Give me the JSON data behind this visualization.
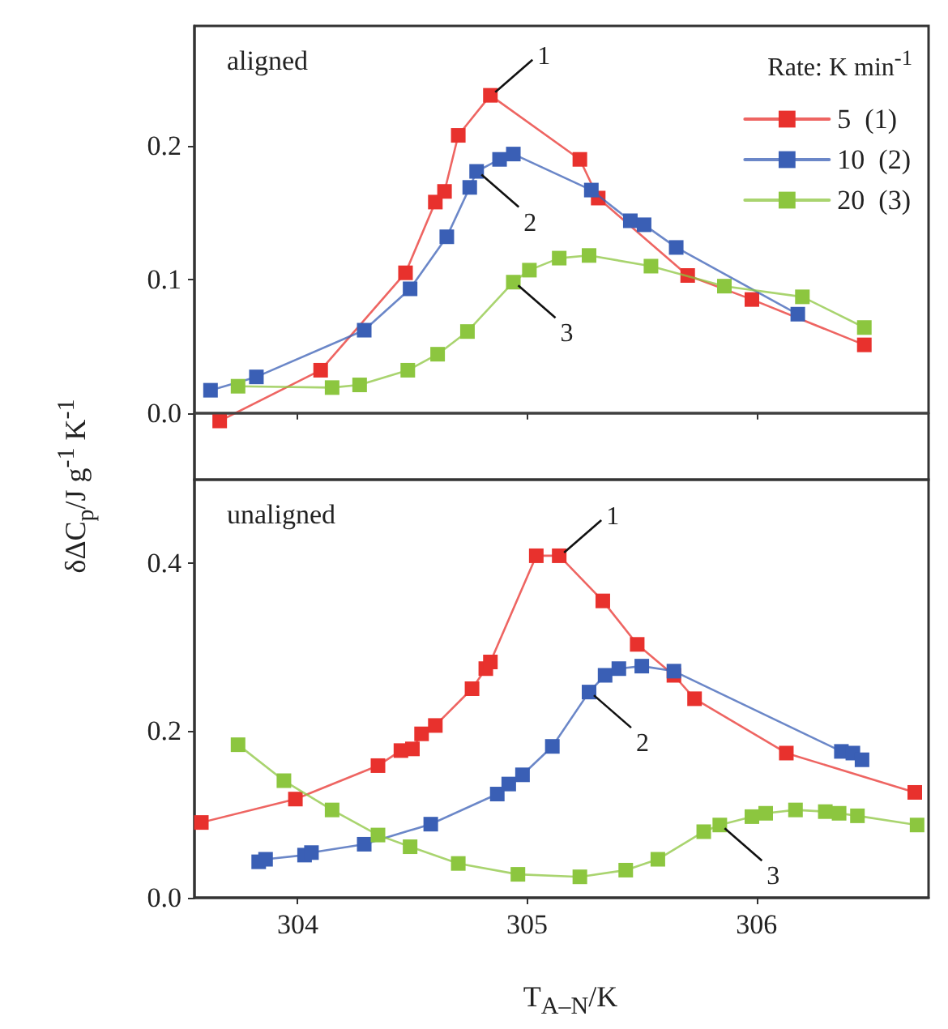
{
  "chart_data": [
    {
      "type": "line",
      "title": "aligned",
      "ylabel": "δΔC$_{p}$/J g$^{-1}$ K$^{-1}$",
      "legend_title": "Rate: K min$^{-1}$",
      "legend": "top right",
      "marker": "square",
      "line_style": "solid",
      "grid": false,
      "tick_labels": "y",
      "xlim": [
        303.55,
        306.75
      ],
      "xticks": [
        {
          "value": 304,
          "label": null
        },
        {
          "value": 305,
          "label": null
        },
        {
          "value": 306,
          "label": null
        }
      ],
      "ylim": [
        -0.05,
        0.29
      ],
      "yticks": [
        {
          "value": 0,
          "label": "0.0"
        },
        {
          "value": 0.1,
          "label": "0.1"
        },
        {
          "value": 0.2,
          "label": "0.2"
        }
      ],
      "ref_lines": [
        {
          "axis": "y",
          "value": 0,
          "color": "#404040"
        }
      ],
      "annotations": [
        {
          "text": "1",
          "x": 304.84,
          "y": 0.238
        },
        {
          "text": "2",
          "x": 304.78,
          "y": 0.181
        },
        {
          "text": "3",
          "x": 304.94,
          "y": 0.098
        }
      ],
      "series": [
        {
          "name": "5  (1)",
          "color": "#e8312d",
          "x": [
            303.66,
            304.1,
            304.47,
            304.6,
            304.64,
            304.7,
            304.84,
            305.23,
            305.31,
            305.7,
            305.98,
            306.47
          ],
          "values": [
            -0.006,
            0.032,
            0.105,
            0.158,
            0.166,
            0.208,
            0.238,
            0.19,
            0.161,
            0.103,
            0.085,
            0.051
          ]
        },
        {
          "name": "10  (2)",
          "color": "#3a5fb5",
          "x": [
            303.62,
            303.82,
            304.29,
            304.49,
            304.65,
            304.75,
            304.78,
            304.88,
            304.94,
            305.28,
            305.45,
            305.51,
            305.65,
            306.18
          ],
          "values": [
            0.017,
            0.027,
            0.062,
            0.093,
            0.132,
            0.169,
            0.181,
            0.19,
            0.194,
            0.167,
            0.144,
            0.141,
            0.124,
            0.074
          ]
        },
        {
          "name": "20  (3)",
          "color": "#8cc63f",
          "x": [
            303.74,
            304.15,
            304.27,
            304.48,
            304.61,
            304.74,
            304.94,
            305.01,
            305.14,
            305.27,
            305.54,
            305.86,
            306.2,
            306.47
          ],
          "values": [
            0.02,
            0.019,
            0.021,
            0.032,
            0.044,
            0.061,
            0.098,
            0.107,
            0.116,
            0.118,
            0.11,
            0.095,
            0.087,
            0.064
          ]
        }
      ]
    },
    {
      "type": "line",
      "title": "unaligned",
      "xlabel": "T$_{A–N}$/K",
      "legend": false,
      "marker": "square",
      "line_style": "solid",
      "grid": false,
      "xlim": [
        303.55,
        306.75
      ],
      "xticks": [
        304,
        305,
        306
      ],
      "ylim": [
        0,
        0.5
      ],
      "yticks": [
        {
          "value": 0,
          "label": "0.0"
        },
        {
          "value": 0.2,
          "label": "0.2"
        },
        {
          "value": 0.4,
          "label": "0.4"
        }
      ],
      "annotations": [
        {
          "text": "1",
          "x": 305.14,
          "y": 0.409
        },
        {
          "text": "2",
          "x": 305.27,
          "y": 0.246
        },
        {
          "text": "3",
          "x": 305.84,
          "y": 0.087
        }
      ],
      "series": [
        {
          "color": "#e8312d",
          "x": [
            303.58,
            303.99,
            304.35,
            304.45,
            304.5,
            304.54,
            304.6,
            304.76,
            304.82,
            304.84,
            305.04,
            305.14,
            305.33,
            305.48,
            305.64,
            305.73,
            306.13,
            306.69
          ],
          "values": [
            0.09,
            0.118,
            0.158,
            0.176,
            0.178,
            0.196,
            0.206,
            0.25,
            0.274,
            0.282,
            0.409,
            0.409,
            0.355,
            0.303,
            0.266,
            0.238,
            0.173,
            0.126
          ]
        },
        {
          "color": "#3a5fb5",
          "x": [
            303.83,
            303.86,
            304.03,
            304.06,
            304.29,
            304.58,
            304.87,
            304.92,
            304.98,
            305.11,
            305.27,
            305.34,
            305.4,
            305.5,
            305.64,
            306.37,
            306.42,
            306.46
          ],
          "values": [
            0.043,
            0.046,
            0.051,
            0.054,
            0.064,
            0.088,
            0.124,
            0.136,
            0.147,
            0.181,
            0.246,
            0.266,
            0.274,
            0.277,
            0.271,
            0.175,
            0.173,
            0.165
          ]
        },
        {
          "color": "#8cc63f",
          "x": [
            303.74,
            303.94,
            304.15,
            304.35,
            304.49,
            304.7,
            304.96,
            305.23,
            305.43,
            305.57,
            305.77,
            305.84,
            305.98,
            306.04,
            306.17,
            306.3,
            306.36,
            306.44,
            306.7
          ],
          "values": [
            0.183,
            0.14,
            0.105,
            0.075,
            0.061,
            0.041,
            0.028,
            0.025,
            0.033,
            0.046,
            0.079,
            0.087,
            0.097,
            0.101,
            0.105,
            0.103,
            0.101,
            0.098,
            0.087
          ]
        }
      ]
    }
  ]
}
